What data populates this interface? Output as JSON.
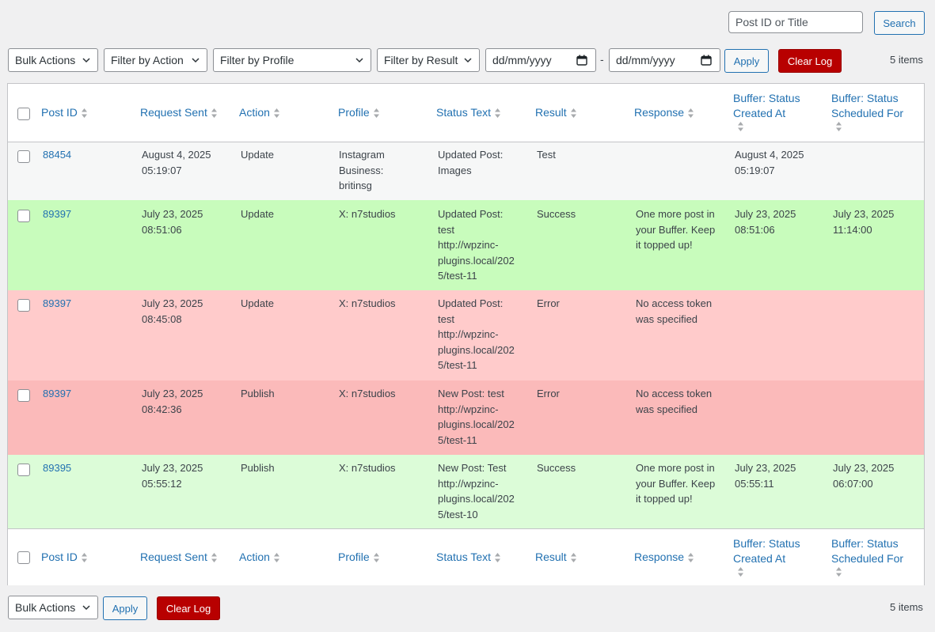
{
  "search": {
    "placeholder": "Post ID or Title",
    "button": "Search"
  },
  "top_nav": {
    "bulk_actions": "Bulk Actions",
    "filter_action": "Filter by Action",
    "filter_profile": "Filter by Profile",
    "filter_result": "Filter by Result",
    "date_from": "dd/mm/yyyy",
    "date_sep": "-",
    "date_to": "dd/mm/yyyy",
    "apply": "Apply",
    "clear_log": "Clear Log",
    "items_count": "5 items"
  },
  "bottom_nav": {
    "bulk_actions": "Bulk Actions",
    "apply": "Apply",
    "clear_log": "Clear Log",
    "items_count": "5 items"
  },
  "columns": {
    "post_id": "Post ID",
    "request_sent": "Request Sent",
    "action": "Action",
    "profile": "Profile",
    "status_text": "Status Text",
    "result": "Result",
    "response": "Response",
    "buffer_created_1": "Buffer: Status",
    "buffer_created_2": "Created At",
    "buffer_scheduled_1": "Buffer: Status",
    "buffer_scheduled_2": "Scheduled For"
  },
  "colors": {
    "test": "#f6f7f7",
    "success": "#c8fcbc",
    "error_update": "#ffcbcb",
    "error_publish": "#fbbaba",
    "success_light": "#dcfcd8",
    "link": "#2271b1",
    "danger": "#b80000"
  },
  "rows": [
    {
      "post_id": "88454",
      "sent_1": "August 4, 2025",
      "sent_2": "05:19:07",
      "action": "Update",
      "profile_1": "Instagram",
      "profile_2": "Business:",
      "profile_3": "britinsg",
      "status_1": "Updated Post:",
      "status_2": "Images",
      "status_3": "",
      "status_4": "",
      "status_5": "",
      "result": "Test",
      "response_1": "",
      "response_2": "",
      "response_3": "",
      "created_1": "August 4, 2025",
      "created_2": "05:19:07",
      "scheduled_1": "",
      "scheduled_2": ""
    },
    {
      "post_id": "89397",
      "sent_1": "July 23, 2025",
      "sent_2": "08:51:06",
      "action": "Update",
      "profile_1": "X: n7studios",
      "profile_2": "",
      "profile_3": "",
      "status_1": "Updated Post:",
      "status_2": "test",
      "status_3": "http://wpzinc-",
      "status_4": "plugins.local/202",
      "status_5": "5/test-11",
      "result": "Success",
      "response_1": "One more post in",
      "response_2": "your Buffer. Keep",
      "response_3": "it topped up!",
      "created_1": "July 23, 2025",
      "created_2": "08:51:06",
      "scheduled_1": "July 23, 2025",
      "scheduled_2": "11:14:00"
    },
    {
      "post_id": "89397",
      "sent_1": "July 23, 2025",
      "sent_2": "08:45:08",
      "action": "Update",
      "profile_1": "X: n7studios",
      "profile_2": "",
      "profile_3": "",
      "status_1": "Updated Post:",
      "status_2": "test",
      "status_3": "http://wpzinc-",
      "status_4": "plugins.local/202",
      "status_5": "5/test-11",
      "result": "Error",
      "response_1": "No access token",
      "response_2": "was specified",
      "response_3": "",
      "created_1": "",
      "created_2": "",
      "scheduled_1": "",
      "scheduled_2": ""
    },
    {
      "post_id": "89397",
      "sent_1": "July 23, 2025",
      "sent_2": "08:42:36",
      "action": "Publish",
      "profile_1": "X: n7studios",
      "profile_2": "",
      "profile_3": "",
      "status_1": "New Post: test",
      "status_2": "http://wpzinc-",
      "status_3": "plugins.local/202",
      "status_4": "5/test-11",
      "status_5": "",
      "result": "Error",
      "response_1": "No access token",
      "response_2": "was specified",
      "response_3": "",
      "created_1": "",
      "created_2": "",
      "scheduled_1": "",
      "scheduled_2": ""
    },
    {
      "post_id": "89395",
      "sent_1": "July 23, 2025",
      "sent_2": "05:55:12",
      "action": "Publish",
      "profile_1": "X: n7studios",
      "profile_2": "",
      "profile_3": "",
      "status_1": "New Post: Test",
      "status_2": "http://wpzinc-",
      "status_3": "plugins.local/202",
      "status_4": "5/test-10",
      "status_5": "",
      "result": "Success",
      "response_1": "One more post in",
      "response_2": "your Buffer. Keep",
      "response_3": "it topped up!",
      "created_1": "July 23, 2025",
      "created_2": "05:55:11",
      "scheduled_1": "July 23, 2025",
      "scheduled_2": "06:07:00"
    }
  ]
}
